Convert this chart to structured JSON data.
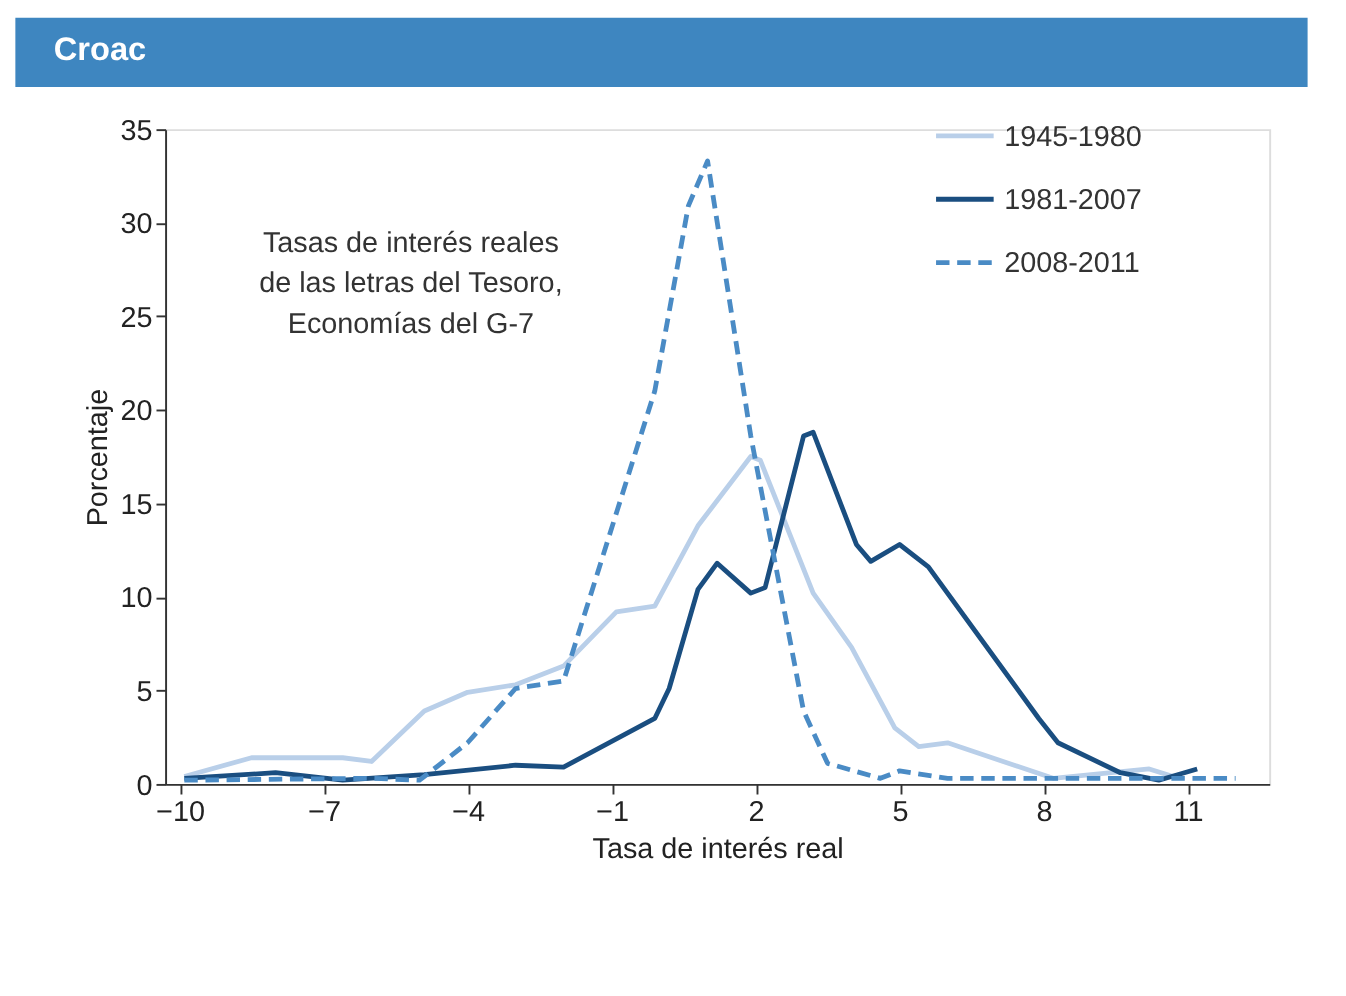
{
  "chart_data": {
    "type": "line",
    "title": "Croac",
    "xlabel": "Tasa de interés real",
    "ylabel": "Porcentaje",
    "annotations": [
      "Tasas de interés reales\nde las letras del Tesoro,\nEconomías del G-7"
    ],
    "xlim": [
      -10.3,
      12.7
    ],
    "xticks": [
      -10,
      -7,
      -4,
      -1,
      2,
      5,
      8,
      11
    ],
    "ylim": [
      0,
      35
    ],
    "yticks": [
      0,
      5,
      10,
      15,
      20,
      25,
      30,
      35
    ],
    "grid": false,
    "legend": "top right",
    "marker": "none",
    "series": [
      {
        "name": "1945-1980",
        "color": "#b9cfe9",
        "line_style": "solid",
        "x": [
          -9.9,
          -8.5,
          -6.6,
          -6.0,
          -4.9,
          -4.0,
          -3.0,
          -2.0,
          -0.9,
          -0.1,
          0.8,
          1.9,
          2.1,
          3.2,
          4.0,
          4.9,
          5.4,
          6.0,
          8.2,
          10.2,
          10.7
        ],
        "values": [
          0.4,
          1.4,
          1.4,
          1.2,
          3.9,
          4.9,
          5.3,
          6.3,
          9.2,
          9.5,
          13.8,
          17.5,
          17.3,
          10.2,
          7.3,
          3.0,
          2.0,
          2.2,
          0.3,
          0.8,
          0.4
        ]
      },
      {
        "name": "1981-2007",
        "color": "#1a4e80",
        "line_style": "solid",
        "x": [
          -9.9,
          -8.0,
          -6.6,
          -4.9,
          -3.0,
          -2.0,
          -0.1,
          0.2,
          0.8,
          1.2,
          1.9,
          2.2,
          3.0,
          3.2,
          4.1,
          4.4,
          5.0,
          5.6,
          7.9,
          8.3,
          9.6,
          10.4,
          11.2
        ],
        "values": [
          0.3,
          0.6,
          0.2,
          0.5,
          1.0,
          0.9,
          3.5,
          5.1,
          10.4,
          11.8,
          10.2,
          10.5,
          18.6,
          18.8,
          12.8,
          11.9,
          12.8,
          11.6,
          3.5,
          2.2,
          0.6,
          0.2,
          0.8
        ]
      },
      {
        "name": "2008-2011",
        "color": "#4a8bc5",
        "line_style": "dashed",
        "x": [
          -9.9,
          -6.0,
          -5.0,
          -4.0,
          -3.0,
          -2.0,
          -0.1,
          0.6,
          1.0,
          1.9,
          3.0,
          3.5,
          4.6,
          5.0,
          6.0,
          12.0
        ],
        "values": [
          0.2,
          0.3,
          0.2,
          2.2,
          5.1,
          5.5,
          21.0,
          30.9,
          33.3,
          18.6,
          3.9,
          1.1,
          0.3,
          0.7,
          0.3,
          0.3
        ]
      }
    ]
  }
}
